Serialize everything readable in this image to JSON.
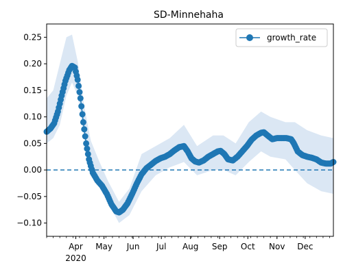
{
  "chart_data": {
    "type": "line",
    "title": "SD-Minnehaha",
    "xlabel": "",
    "ylabel": "",
    "ylim": [
      -0.125,
      0.275
    ],
    "xlim": [
      "2020-03-01",
      "2020-12-31"
    ],
    "yticks": [
      -0.1,
      -0.05,
      0.0,
      0.05,
      0.1,
      0.15,
      0.2,
      0.25
    ],
    "ytick_labels": [
      "−0.10",
      "−0.05",
      "0.00",
      "0.05",
      "0.10",
      "0.15",
      "0.20",
      "0.25"
    ],
    "xticks": [
      {
        "date": "2020-04-01",
        "label": "Apr",
        "sublabel": "2020"
      },
      {
        "date": "2020-05-01",
        "label": "May",
        "sublabel": ""
      },
      {
        "date": "2020-06-01",
        "label": "Jun",
        "sublabel": ""
      },
      {
        "date": "2020-07-01",
        "label": "Jul",
        "sublabel": ""
      },
      {
        "date": "2020-08-01",
        "label": "Aug",
        "sublabel": ""
      },
      {
        "date": "2020-09-01",
        "label": "Sep",
        "sublabel": ""
      },
      {
        "date": "2020-10-01",
        "label": "Oct",
        "sublabel": ""
      },
      {
        "date": "2020-11-01",
        "label": "Nov",
        "sublabel": ""
      },
      {
        "date": "2020-12-01",
        "label": "Dec",
        "sublabel": ""
      }
    ],
    "legend": {
      "entries": [
        "growth_rate"
      ],
      "placement": "top-right"
    },
    "grid": false,
    "reference_line": {
      "y": 0.0,
      "style": "dashed"
    },
    "colors": {
      "series": "#1f77b4",
      "band": "#dbe7f4"
    },
    "series": [
      {
        "name": "growth_rate",
        "marker": "circle",
        "points": [
          [
            "2020-03-01",
            0.072
          ],
          [
            "2020-03-05",
            0.078
          ],
          [
            "2020-03-09",
            0.088
          ],
          [
            "2020-03-13",
            0.11
          ],
          [
            "2020-03-17",
            0.14
          ],
          [
            "2020-03-21",
            0.168
          ],
          [
            "2020-03-25",
            0.188
          ],
          [
            "2020-03-28",
            0.196
          ],
          [
            "2020-03-31",
            0.193
          ],
          [
            "2020-04-03",
            0.17
          ],
          [
            "2020-04-06",
            0.135
          ],
          [
            "2020-04-09",
            0.09
          ],
          [
            "2020-04-12",
            0.05
          ],
          [
            "2020-04-15",
            0.02
          ],
          [
            "2020-04-19",
            -0.005
          ],
          [
            "2020-04-24",
            -0.02
          ],
          [
            "2020-04-29",
            -0.03
          ],
          [
            "2020-05-04",
            -0.045
          ],
          [
            "2020-05-09",
            -0.065
          ],
          [
            "2020-05-14",
            -0.078
          ],
          [
            "2020-05-17",
            -0.08
          ],
          [
            "2020-05-21",
            -0.075
          ],
          [
            "2020-05-26",
            -0.063
          ],
          [
            "2020-05-31",
            -0.045
          ],
          [
            "2020-06-05",
            -0.025
          ],
          [
            "2020-06-10",
            -0.008
          ],
          [
            "2020-06-15",
            0.003
          ],
          [
            "2020-06-20",
            0.01
          ],
          [
            "2020-06-25",
            0.017
          ],
          [
            "2020-06-30",
            0.022
          ],
          [
            "2020-07-05",
            0.025
          ],
          [
            "2020-07-10",
            0.03
          ],
          [
            "2020-07-15",
            0.037
          ],
          [
            "2020-07-20",
            0.043
          ],
          [
            "2020-07-25",
            0.045
          ],
          [
            "2020-07-29",
            0.035
          ],
          [
            "2020-08-02",
            0.022
          ],
          [
            "2020-08-06",
            0.016
          ],
          [
            "2020-08-10",
            0.014
          ],
          [
            "2020-08-15",
            0.018
          ],
          [
            "2020-08-20",
            0.025
          ],
          [
            "2020-08-25",
            0.03
          ],
          [
            "2020-08-30",
            0.035
          ],
          [
            "2020-09-02",
            0.036
          ],
          [
            "2020-09-06",
            0.03
          ],
          [
            "2020-09-10",
            0.02
          ],
          [
            "2020-09-15",
            0.018
          ],
          [
            "2020-09-20",
            0.025
          ],
          [
            "2020-09-25",
            0.035
          ],
          [
            "2020-09-30",
            0.045
          ],
          [
            "2020-10-05",
            0.057
          ],
          [
            "2020-10-10",
            0.065
          ],
          [
            "2020-10-15",
            0.07
          ],
          [
            "2020-10-18",
            0.071
          ],
          [
            "2020-10-22",
            0.065
          ],
          [
            "2020-10-27",
            0.058
          ],
          [
            "2020-11-01",
            0.06
          ],
          [
            "2020-11-06",
            0.06
          ],
          [
            "2020-11-11",
            0.06
          ],
          [
            "2020-11-16",
            0.058
          ],
          [
            "2020-11-19",
            0.05
          ],
          [
            "2020-11-23",
            0.035
          ],
          [
            "2020-11-28",
            0.028
          ],
          [
            "2020-12-03",
            0.025
          ],
          [
            "2020-12-08",
            0.023
          ],
          [
            "2020-12-13",
            0.02
          ],
          [
            "2020-12-18",
            0.014
          ],
          [
            "2020-12-23",
            0.012
          ],
          [
            "2020-12-28",
            0.012
          ],
          [
            "2020-12-31",
            0.015
          ]
        ],
        "band": [
          [
            "2020-03-01",
            0.05,
            0.135
          ],
          [
            "2020-03-08",
            0.06,
            0.15
          ],
          [
            "2020-03-15",
            0.085,
            0.2
          ],
          [
            "2020-03-22",
            0.14,
            0.25
          ],
          [
            "2020-03-28",
            0.165,
            0.255
          ],
          [
            "2020-04-03",
            0.14,
            0.205
          ],
          [
            "2020-04-10",
            0.06,
            0.12
          ],
          [
            "2020-04-17",
            0.0,
            0.055
          ],
          [
            "2020-04-25",
            -0.03,
            0.02
          ],
          [
            "2020-05-05",
            -0.06,
            -0.02
          ],
          [
            "2020-05-17",
            -0.1,
            -0.06
          ],
          [
            "2020-05-28",
            -0.085,
            -0.035
          ],
          [
            "2020-06-10",
            -0.04,
            0.03
          ],
          [
            "2020-06-25",
            -0.01,
            0.045
          ],
          [
            "2020-07-10",
            0.005,
            0.06
          ],
          [
            "2020-07-25",
            0.015,
            0.085
          ],
          [
            "2020-08-08",
            -0.01,
            0.045
          ],
          [
            "2020-08-25",
            0.0,
            0.065
          ],
          [
            "2020-09-05",
            0.0,
            0.065
          ],
          [
            "2020-09-18",
            -0.01,
            0.05
          ],
          [
            "2020-10-02",
            0.015,
            0.09
          ],
          [
            "2020-10-15",
            0.035,
            0.11
          ],
          [
            "2020-10-25",
            0.025,
            0.1
          ],
          [
            "2020-11-10",
            0.02,
            0.09
          ],
          [
            "2020-11-20",
            0.0,
            0.09
          ],
          [
            "2020-12-03",
            -0.025,
            0.075
          ],
          [
            "2020-12-18",
            -0.04,
            0.065
          ],
          [
            "2020-12-31",
            -0.045,
            0.06
          ]
        ]
      }
    ]
  }
}
